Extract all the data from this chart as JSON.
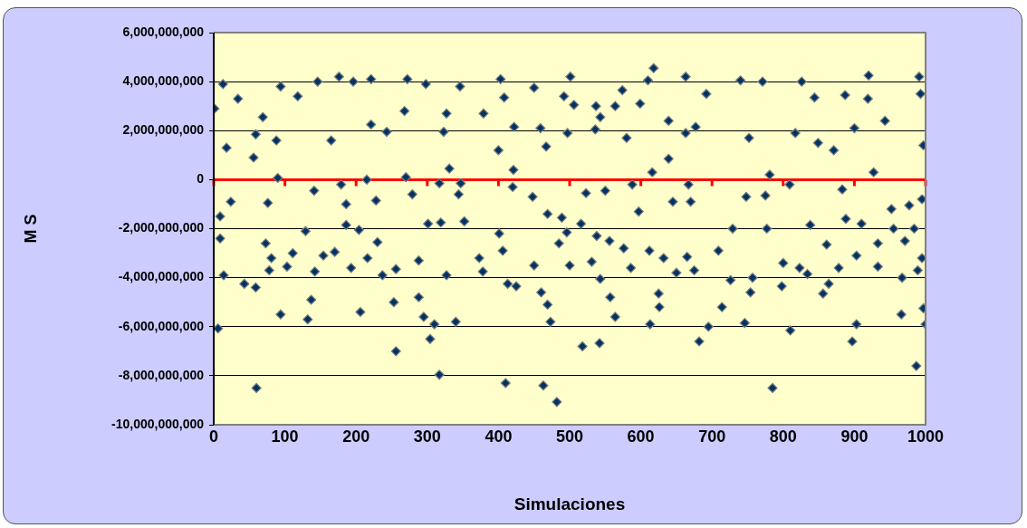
{
  "chart_data": {
    "type": "scatter",
    "xlabel": "Simulaciones",
    "ylabel": "M S",
    "xlim": [
      0,
      1000
    ],
    "xticks": [
      0,
      100,
      200,
      300,
      400,
      500,
      600,
      700,
      800,
      900,
      1000
    ],
    "ylim": [
      -10000000000.0,
      6000000000.0
    ],
    "yticks": [
      {
        "value": -10000000000.0,
        "label": "-10,000,000,000"
      },
      {
        "value": -8000000000.0,
        "label": "-8,000,000,000"
      },
      {
        "value": -6000000000.0,
        "label": "-6,000,000,000"
      },
      {
        "value": -4000000000.0,
        "label": "-4,000,000,000"
      },
      {
        "value": -2000000000.0,
        "label": "-2,000,000,000"
      },
      {
        "value": 0,
        "label": "0"
      },
      {
        "value": 2000000000.0,
        "label": "2,000,000,000"
      },
      {
        "value": 4000000000.0,
        "label": "4,000,000,000"
      },
      {
        "value": 6000000000.0,
        "label": "6,000,000,000"
      }
    ],
    "grid": "y",
    "marker": "diamond",
    "ref_lines": [
      {
        "axis": "y",
        "value": 0,
        "color": "#ff0000"
      }
    ],
    "series": [
      {
        "color": "#003366",
        "x": [
          6,
          1,
          13,
          24,
          9,
          9,
          14,
          43,
          59,
          18,
          56,
          59,
          34,
          69,
          88,
          90,
          76,
          73,
          81,
          78,
          103,
          111,
          94,
          118,
          146,
          141,
          129,
          154,
          170,
          142,
          176,
          179,
          186,
          165,
          196,
          186,
          193,
          204,
          221,
          221,
          215,
          228,
          230,
          216,
          237,
          256,
          243,
          270,
          272,
          268,
          279,
          288,
          298,
          301,
          319,
          317,
          323,
          327,
          60,
          94,
          132,
          137,
          206,
          256,
          317,
          304,
          253,
          288,
          295,
          310,
          340,
          410,
          463,
          482,
          518,
          542,
          564,
          613,
          473,
          469,
          460,
          557,
          626,
          618,
          501,
          403,
          785,
          987,
          682,
          695,
          746,
          810,
          897,
          903,
          966,
          1000,
          714,
          920,
          991,
          826,
          663,
          997,
          995,
          346,
          327,
          331,
          347,
          344,
          352,
          373,
          378,
          401,
          406,
          413,
          425,
          379,
          408,
          400,
          421,
          420,
          422,
          450,
          459,
          448,
          469,
          450,
          467,
          489,
          485,
          496,
          492,
          497,
          500,
          506,
          516,
          523,
          537,
          543,
          536,
          538,
          543,
          531,
          550,
          556,
          564,
          574,
          580,
          576,
          586,
          588,
          597,
          599,
          612,
          610,
          616,
          625,
          632,
          639,
          639,
          645,
          650,
          663,
          692,
          677,
          667,
          670,
          665,
          675,
          709,
          726,
          729,
          740,
          752,
          748,
          757,
          754,
          775,
          777,
          771,
          781,
          798,
          800,
          809,
          817,
          823,
          834,
          838,
          844,
          849,
          856,
          861,
          864,
          871,
          878,
          883,
          888,
          887,
          903,
          900,
          910,
          919,
          927,
          933,
          933,
          943,
          952,
          955,
          967,
          971,
          977,
          984,
          989,
          995,
          993,
          997
        ],
        "values": [
          -6070000000.0,
          2900000000.0,
          3900000000.0,
          -900000000.0,
          -1500000000.0,
          -2400000000.0,
          -3900000000.0,
          -4250000000.0,
          -4400000000.0,
          1300000000.0,
          900000000.0,
          1850000000.0,
          3300000000.0,
          2550000000.0,
          1600000000.0,
          70000000.0,
          -950000000.0,
          -2600000000.0,
          -3200000000.0,
          -3700000000.0,
          -3550000000.0,
          -3000000000.0,
          3800000000.0,
          3400000000.0,
          4000000000.0,
          -450000000.0,
          -2100000000.0,
          -3100000000.0,
          -2950000000.0,
          -3750000000.0,
          4200000000.0,
          -200000000.0,
          -1000000000.0,
          1600000000.0,
          4000000000.0,
          -1850000000.0,
          -3600000000.0,
          -2050000000.0,
          4100000000.0,
          2250000000.0,
          0,
          -850000000.0,
          -2550000000.0,
          -3200000000.0,
          -3900000000.0,
          -3650000000.0,
          1950000000.0,
          100000000.0,
          4100000000.0,
          2800000000.0,
          -600000000.0,
          -3300000000.0,
          3900000000.0,
          -1800000000.0,
          -1750000000.0,
          -150000000.0,
          1950000000.0,
          -3900000000.0,
          -8500000000.0,
          -5500000000.0,
          -5700000000.0,
          -4900000000.0,
          -5400000000.0,
          -7000000000.0,
          -7960000000.0,
          -6500000000.0,
          -5000000000.0,
          -4800000000.0,
          -5600000000.0,
          -5900000000.0,
          -5800000000.0,
          -8300000000.0,
          -8400000000.0,
          -9070000000.0,
          -6800000000.0,
          -6670000000.0,
          -5600000000.0,
          -5900000000.0,
          -5800000000.0,
          -5100000000.0,
          -4600000000.0,
          -4800000000.0,
          -5200000000.0,
          4550000000.0,
          4200000000.0,
          4100000000.0,
          -8500000000.0,
          -7600000000.0,
          -6600000000.0,
          -6000000000.0,
          -5850000000.0,
          -6150000000.0,
          -6600000000.0,
          -5900000000.0,
          -5500000000.0,
          -5900000000.0,
          -5200000000.0,
          4250000000.0,
          4200000000.0,
          4000000000.0,
          4200000000.0,
          -5250000000.0,
          -3200000000.0,
          3800000000.0,
          2700000000.0,
          450000000.0,
          -150000000.0,
          -600000000.0,
          -1700000000.0,
          -3200000000.0,
          -3750000000.0,
          -2200000000.0,
          -2900000000.0,
          -4250000000.0,
          -4350000000.0,
          2700000000.0,
          3350000000.0,
          1200000000.0,
          400000000.0,
          -300000000.0,
          2150000000.0,
          3750000000.0,
          2100000000.0,
          -700000000.0,
          -1400000000.0,
          -3500000000.0,
          1350000000.0,
          -1550000000.0,
          -2600000000.0,
          -2150000000.0,
          3400000000.0,
          1900000000.0,
          -3500000000.0,
          3050000000.0,
          -1800000000.0,
          -550000000.0,
          3000000000.0,
          2550000000.0,
          2050000000.0,
          -2300000000.0,
          -4050000000.0,
          -3350000000.0,
          -450000000.0,
          -2500000000.0,
          3000000000.0,
          3650000000.0,
          1700000000.0,
          -2800000000.0,
          -3600000000.0,
          -200000000.0,
          -1300000000.0,
          3100000000.0,
          -2900000000.0,
          4050000000.0,
          300000000.0,
          -4650000000.0,
          -3200000000.0,
          2400000000.0,
          850000000.0,
          -900000000.0,
          -3800000000.0,
          1900000000.0,
          3500000000.0,
          2150000000.0,
          -200000000.0,
          -900000000.0,
          -3150000000.0,
          -3700000000.0,
          -2900000000.0,
          -4100000000.0,
          -2000000000.0,
          4050000000.0,
          1700000000.0,
          -700000000.0,
          -4000000000.0,
          -4600000000.0,
          -650000000.0,
          -2000000000.0,
          4000000000.0,
          200000000.0,
          -4350000000.0,
          -3400000000.0,
          -200000000.0,
          1900000000.0,
          -3600000000.0,
          -3850000000.0,
          -1850000000.0,
          3350000000.0,
          1500000000.0,
          -4650000000.0,
          -2650000000.0,
          -4250000000.0,
          1200000000.0,
          -3600000000.0,
          -400000000.0,
          -1600000000.0,
          3450000000.0,
          -3100000000.0,
          2100000000.0,
          -1800000000.0,
          3300000000.0,
          300000000.0,
          -2600000000.0,
          -3550000000.0,
          2400000000.0,
          -1200000000.0,
          -2000000000.0,
          -4000000000.0,
          -2500000000.0,
          -1050000000.0,
          -2000000000.0,
          -3700000000.0,
          -800000000.0,
          3500000000.0,
          1400000000.0
        ]
      }
    ]
  }
}
